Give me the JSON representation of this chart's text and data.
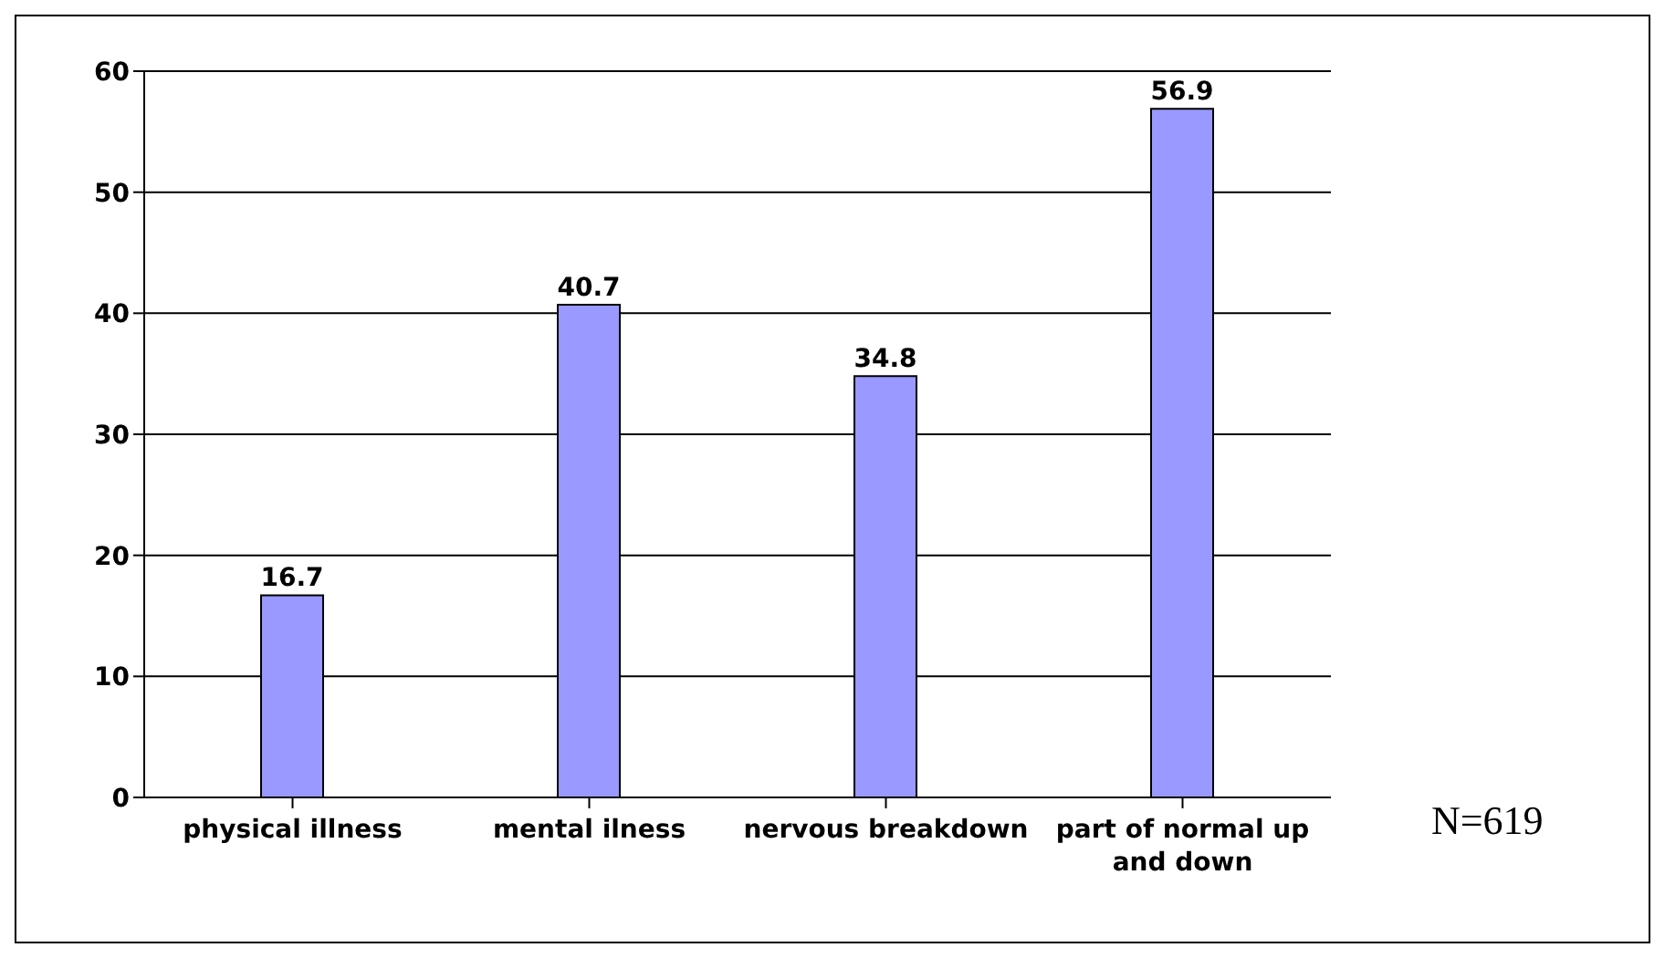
{
  "chart_data": {
    "type": "bar",
    "categories": [
      "physical illness",
      "mental ilness",
      "nervous breakdown",
      "part of normal up and down"
    ],
    "values": [
      16.7,
      40.7,
      34.8,
      56.9
    ],
    "color": "#9999ff",
    "ylim": [
      0,
      60
    ],
    "yticks": [
      0,
      10,
      20,
      30,
      40,
      50,
      60
    ],
    "grid": "y",
    "data_labels": true,
    "annotations": [
      "N=619"
    ]
  }
}
